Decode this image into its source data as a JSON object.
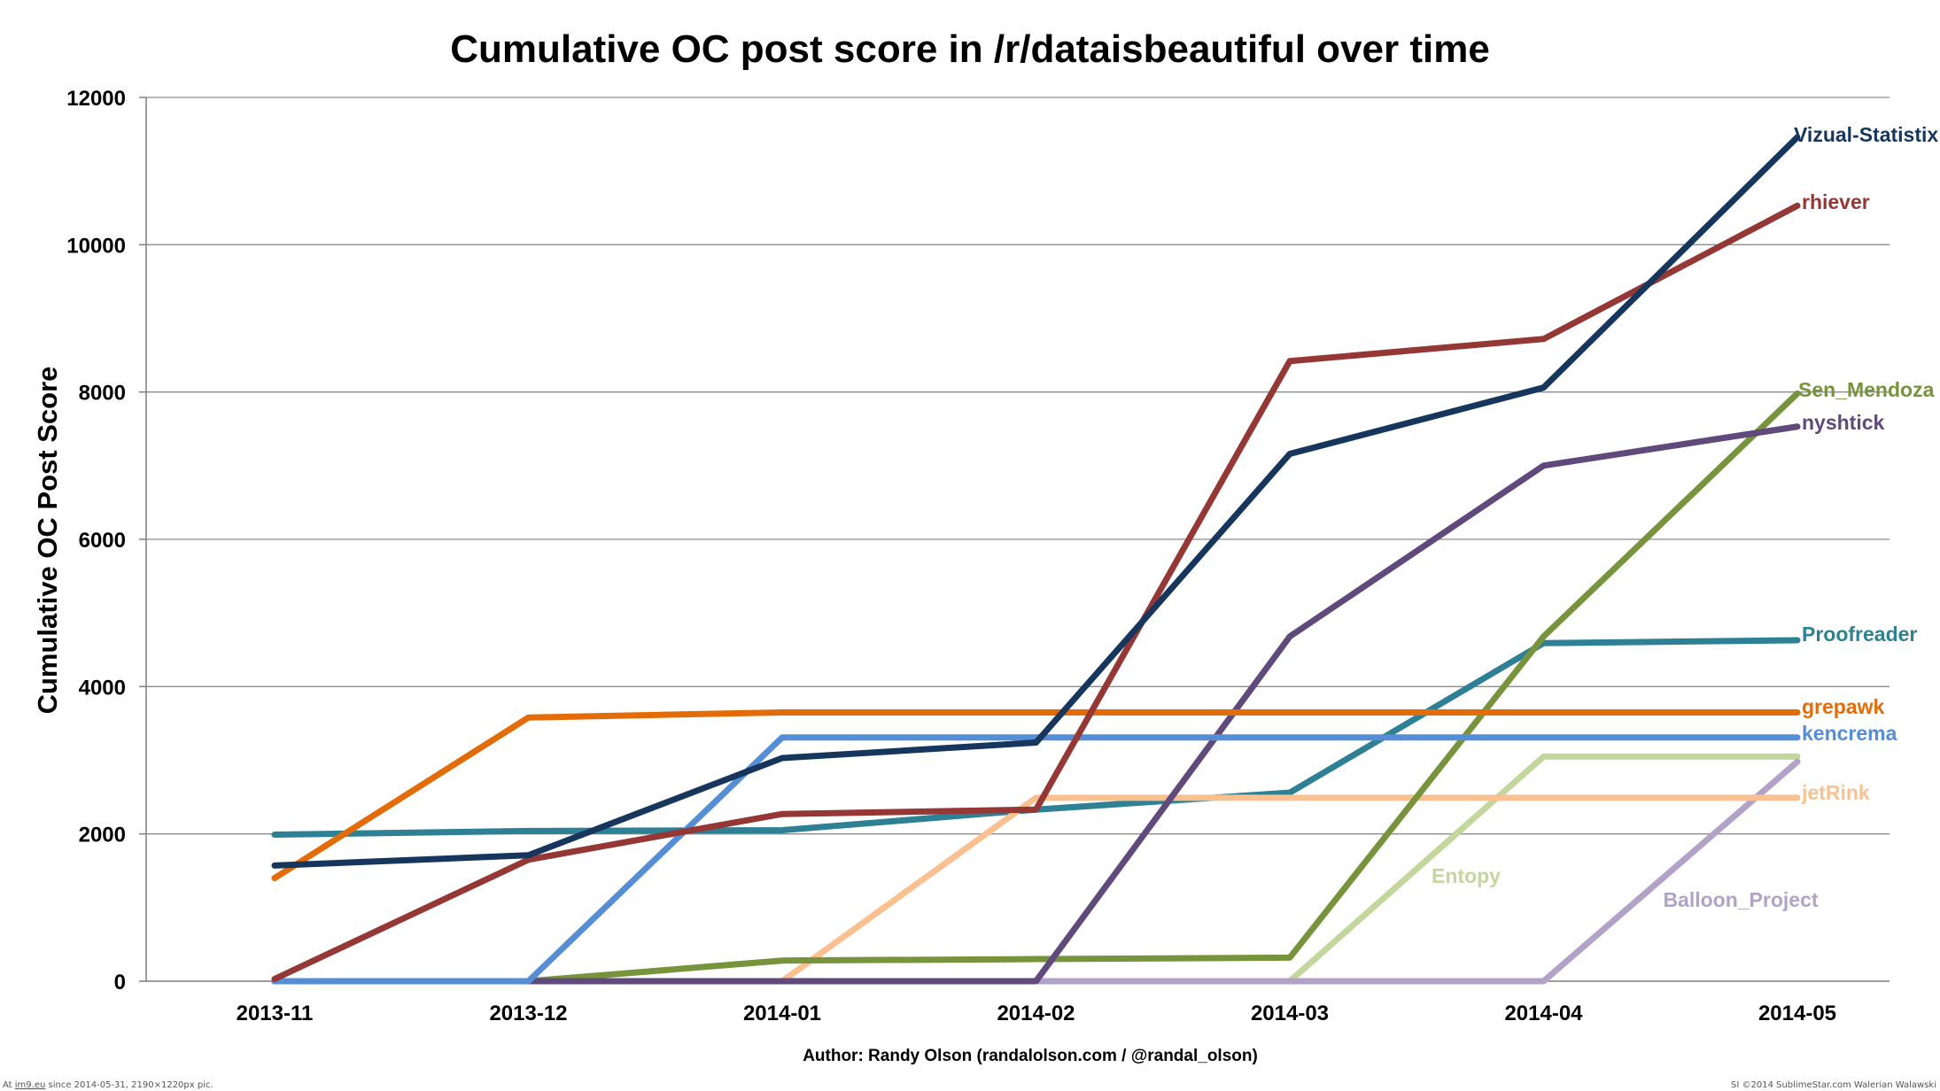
{
  "chart_data": {
    "type": "line",
    "title": "Cumulative OC post score in /r/dataisbeautiful over time",
    "xlabel": "",
    "ylabel": "Cumulative OC Post Score",
    "x": [
      "2013-11",
      "2013-12",
      "2014-01",
      "2014-02",
      "2014-03",
      "2014-04",
      "2014-05"
    ],
    "ylim": [
      0,
      12000
    ],
    "yticks": [
      "0",
      "2000",
      "4000",
      "6000",
      "8000",
      "10000",
      "12000"
    ],
    "grid": "horizontal",
    "legend": "direct labels at line ends",
    "series": [
      {
        "name": "Proofreader",
        "color": "#2e8094",
        "values": [
          1990,
          2040,
          2050,
          2330,
          2560,
          4590,
          4630
        ]
      },
      {
        "name": "Entopy",
        "color": "#c3d69b",
        "values": [
          0,
          0,
          0,
          0,
          0,
          3050,
          3050
        ]
      },
      {
        "name": "Balloon_Project",
        "color": "#b3a2c7",
        "values": [
          0,
          0,
          0,
          0,
          0,
          0,
          2980
        ]
      },
      {
        "name": "jetRink",
        "color": "#fac090",
        "values": [
          0,
          0,
          0,
          2490,
          2490,
          2490,
          2490
        ]
      },
      {
        "name": "Sen_Mendoza",
        "color": "#77933c",
        "values": [
          0,
          0,
          280,
          300,
          320,
          4680,
          7980
        ]
      },
      {
        "name": "nyshtick",
        "color": "#604a7b",
        "values": [
          0,
          0,
          0,
          0,
          4680,
          7000,
          7530
        ]
      },
      {
        "name": "kencrema",
        "color": "#558ed5",
        "values": [
          0,
          0,
          3310,
          3310,
          3310,
          3310,
          3310
        ]
      },
      {
        "name": "grepawk",
        "color": "#e36c09",
        "values": [
          1400,
          3580,
          3650,
          3650,
          3650,
          3650,
          3650
        ]
      },
      {
        "name": "rhiever",
        "color": "#953735",
        "values": [
          30,
          1650,
          2270,
          2330,
          8420,
          8720,
          10530
        ]
      },
      {
        "name": "Vizual-Statistix",
        "color": "#17365d",
        "values": [
          1570,
          1710,
          3030,
          3240,
          7160,
          8060,
          11460
        ]
      }
    ]
  },
  "credit": "Author: Randy Olson (randalolson.com / @randal_olson)",
  "footer": {
    "left_prefix": "At ",
    "left_link": "im9.eu",
    "left_suffix": " since 2014-05-31, 2190×1220px pic.",
    "right": "SI ©2014 SublimeStar.com Walerian Walawski"
  }
}
